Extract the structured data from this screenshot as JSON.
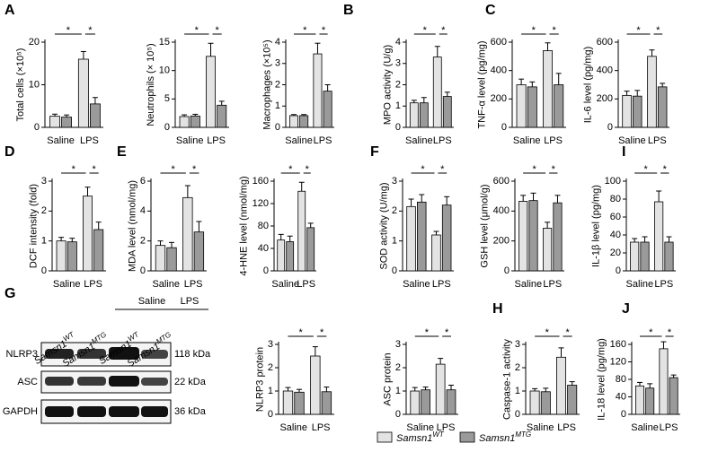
{
  "panel_letters": [
    "A",
    "B",
    "C",
    "D",
    "E",
    "F",
    "I",
    "G",
    "H",
    "J"
  ],
  "legend": {
    "series": [
      {
        "name": "Samsn1",
        "superscript": "WT",
        "color": "#e3e3e3"
      },
      {
        "name": "Samsn1",
        "superscript": "MTG",
        "color": "#9a9a9a"
      }
    ]
  },
  "blot": {
    "groups": [
      "Saline",
      "LPS"
    ],
    "lanes": [
      {
        "name": "Samsn1",
        "superscript": "WT"
      },
      {
        "name": "Samsn1",
        "superscript": "MTG"
      },
      {
        "name": "Samsn1",
        "superscript": "WT"
      },
      {
        "name": "Samsn1",
        "superscript": "MTG"
      }
    ],
    "rows": [
      {
        "protein": "NLRP3",
        "size": "118 kDa"
      },
      {
        "protein": "ASC",
        "size": "22 kDa"
      },
      {
        "protein": "GAPDH",
        "size": "36 kDa"
      }
    ]
  },
  "chart_data": [
    {
      "type": "bar",
      "ylabel": "Total cells (×10⁵)",
      "categories": [
        "Saline",
        "LPS"
      ],
      "ylim": [
        0,
        20
      ],
      "yticks": [
        0,
        10,
        20
      ],
      "annotations": [
        "*",
        "*"
      ],
      "series": [
        {
          "values": [
            2.6,
            16
          ],
          "errors": [
            0.5,
            1.8
          ]
        },
        {
          "values": [
            2.4,
            5.5
          ],
          "errors": [
            0.5,
            1.5
          ]
        }
      ]
    },
    {
      "type": "bar",
      "ylabel": "Neutrophils (× 10⁵)",
      "categories": [
        "Saline",
        "LPS"
      ],
      "ylim": [
        0,
        15
      ],
      "yticks": [
        0,
        5,
        10,
        15
      ],
      "annotations": [
        "*",
        "*"
      ],
      "series": [
        {
          "values": [
            1.9,
            12.5
          ],
          "errors": [
            0.3,
            2.3
          ]
        },
        {
          "values": [
            2.0,
            3.9
          ],
          "errors": [
            0.3,
            0.7
          ]
        }
      ]
    },
    {
      "type": "bar",
      "ylabel": "Macrophages (×10⁵)",
      "categories": [
        "Saline",
        "LPS"
      ],
      "ylim": [
        0,
        4
      ],
      "yticks": [
        0,
        1,
        2,
        3,
        4
      ],
      "annotations": [
        "*",
        "*"
      ],
      "series": [
        {
          "values": [
            0.55,
            3.45
          ],
          "errors": [
            0.05,
            0.5
          ]
        },
        {
          "values": [
            0.55,
            1.7
          ],
          "errors": [
            0.05,
            0.3
          ]
        }
      ]
    },
    {
      "type": "bar",
      "ylabel": "MPO activity (U/g)",
      "categories": [
        "Saline",
        "LPS"
      ],
      "ylim": [
        0,
        4
      ],
      "yticks": [
        0,
        1,
        2,
        3,
        4
      ],
      "annotations": [
        "*",
        "*"
      ],
      "series": [
        {
          "values": [
            1.15,
            3.3
          ],
          "errors": [
            0.12,
            0.5
          ]
        },
        {
          "values": [
            1.15,
            1.45
          ],
          "errors": [
            0.25,
            0.2
          ]
        }
      ]
    },
    {
      "type": "bar",
      "ylabel": "TNF-α level (pg/mg)",
      "categories": [
        "Saline",
        "LPS"
      ],
      "ylim": [
        0,
        600
      ],
      "yticks": [
        0,
        200,
        400,
        600
      ],
      "annotations": [
        "*",
        "*"
      ],
      "series": [
        {
          "values": [
            300,
            540
          ],
          "errors": [
            40,
            55
          ]
        },
        {
          "values": [
            285,
            300
          ],
          "errors": [
            35,
            80
          ]
        }
      ]
    },
    {
      "type": "bar",
      "ylabel": "IL-6 level (pg/mg)",
      "categories": [
        "Saline",
        "LPS"
      ],
      "ylim": [
        0,
        600
      ],
      "yticks": [
        0,
        200,
        400,
        600
      ],
      "annotations": [
        "*",
        "*"
      ],
      "series": [
        {
          "values": [
            225,
            500
          ],
          "errors": [
            30,
            45
          ]
        },
        {
          "values": [
            220,
            285
          ],
          "errors": [
            40,
            25
          ]
        }
      ]
    },
    {
      "type": "bar",
      "ylabel": "DCF intensity (fold)",
      "categories": [
        "Saline",
        "LPS"
      ],
      "ylim": [
        0,
        3
      ],
      "yticks": [
        0,
        1,
        2,
        3
      ],
      "annotations": [
        "*",
        "*"
      ],
      "series": [
        {
          "values": [
            1.0,
            2.5
          ],
          "errors": [
            0.12,
            0.3
          ]
        },
        {
          "values": [
            0.97,
            1.38
          ],
          "errors": [
            0.12,
            0.25
          ]
        }
      ]
    },
    {
      "type": "bar",
      "ylabel": "MDA level (nmol/mg)",
      "categories": [
        "Saline",
        "LPS"
      ],
      "ylim": [
        0,
        6
      ],
      "yticks": [
        0,
        2,
        4,
        6
      ],
      "annotations": [
        "*",
        "*"
      ],
      "series": [
        {
          "values": [
            1.7,
            4.9
          ],
          "errors": [
            0.3,
            0.8
          ]
        },
        {
          "values": [
            1.55,
            2.6
          ],
          "errors": [
            0.35,
            0.7
          ]
        }
      ]
    },
    {
      "type": "bar",
      "ylabel": "4-HNE level (nmol/mg)",
      "categories": [
        "Saline",
        "LPS"
      ],
      "ylim": [
        0,
        160
      ],
      "yticks": [
        0,
        40,
        80,
        120,
        160
      ],
      "annotations": [
        "*",
        "*"
      ],
      "series": [
        {
          "values": [
            55,
            142
          ],
          "errors": [
            10,
            16
          ]
        },
        {
          "values": [
            52,
            77
          ],
          "errors": [
            10,
            8
          ]
        }
      ]
    },
    {
      "type": "bar",
      "ylabel": "SOD activity (U/mg)",
      "categories": [
        "Saline",
        "LPS"
      ],
      "ylim": [
        0,
        3
      ],
      "yticks": [
        0,
        1,
        2,
        3
      ],
      "annotations": [
        "*",
        "*"
      ],
      "series": [
        {
          "values": [
            2.15,
            1.2
          ],
          "errors": [
            0.25,
            0.12
          ]
        },
        {
          "values": [
            2.3,
            2.2
          ],
          "errors": [
            0.25,
            0.28
          ]
        }
      ]
    },
    {
      "type": "bar",
      "ylabel": "GSH level (μmol/g)",
      "categories": [
        "Saline",
        "LPS"
      ],
      "ylim": [
        0,
        600
      ],
      "yticks": [
        0,
        200,
        400,
        600
      ],
      "annotations": [
        "*",
        "*"
      ],
      "series": [
        {
          "values": [
            465,
            285
          ],
          "errors": [
            40,
            40
          ]
        },
        {
          "values": [
            470,
            455
          ],
          "errors": [
            50,
            50
          ]
        }
      ]
    },
    {
      "type": "bar",
      "ylabel": "IL-1β level (pg/mg)",
      "categories": [
        "Saline",
        "LPS"
      ],
      "ylim": [
        0,
        100
      ],
      "yticks": [
        0,
        20,
        40,
        60,
        80,
        100
      ],
      "annotations": [
        "*",
        "*"
      ],
      "series": [
        {
          "values": [
            32,
            77
          ],
          "errors": [
            4,
            12
          ]
        },
        {
          "values": [
            32,
            32
          ],
          "errors": [
            6,
            6
          ]
        }
      ]
    },
    {
      "type": "bar",
      "ylabel": "NLRP3 protein",
      "categories": [
        "Saline",
        "LPS"
      ],
      "ylim": [
        0,
        3
      ],
      "yticks": [
        0,
        1,
        2,
        3
      ],
      "annotations": [
        "*",
        "*"
      ],
      "series": [
        {
          "values": [
            1.0,
            2.5
          ],
          "errors": [
            0.15,
            0.4
          ]
        },
        {
          "values": [
            0.95,
            0.97
          ],
          "errors": [
            0.12,
            0.2
          ]
        }
      ]
    },
    {
      "type": "bar",
      "ylabel": "ASC protein",
      "categories": [
        "Saline",
        "LPS"
      ],
      "ylim": [
        0,
        3
      ],
      "yticks": [
        0,
        1,
        2,
        3
      ],
      "annotations": [
        "*",
        "*"
      ],
      "series": [
        {
          "values": [
            1.0,
            2.15
          ],
          "errors": [
            0.15,
            0.25
          ]
        },
        {
          "values": [
            1.05,
            1.05
          ],
          "errors": [
            0.12,
            0.2
          ]
        }
      ]
    },
    {
      "type": "bar",
      "ylabel": "Caspase-1 activity",
      "categories": [
        "Saline",
        "LPS"
      ],
      "ylim": [
        0,
        3
      ],
      "yticks": [
        0,
        1,
        2,
        3
      ],
      "annotations": [
        "*",
        "*"
      ],
      "series": [
        {
          "values": [
            1.0,
            2.45
          ],
          "errors": [
            0.1,
            0.4
          ]
        },
        {
          "values": [
            0.97,
            1.25
          ],
          "errors": [
            0.15,
            0.15
          ]
        }
      ]
    },
    {
      "type": "bar",
      "ylabel": "IL-18 level (pg/mg)",
      "categories": [
        "Saline",
        "LPS"
      ],
      "ylim": [
        0,
        160
      ],
      "yticks": [
        0,
        40,
        80,
        120,
        160
      ],
      "annotations": [
        "*",
        "*"
      ],
      "series": [
        {
          "values": [
            65,
            150
          ],
          "errors": [
            8,
            16
          ]
        },
        {
          "values": [
            60,
            84
          ],
          "errors": [
            10,
            6
          ]
        }
      ]
    }
  ]
}
